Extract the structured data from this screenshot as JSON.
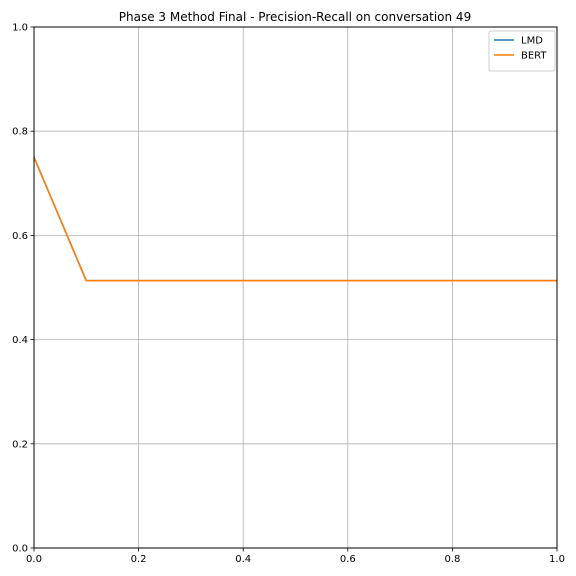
{
  "chart_data": {
    "type": "line",
    "title": "Phase 3 Method Final - Precision-Recall on conversation 49",
    "xlabel": "",
    "ylabel": "",
    "xlim": [
      0,
      1
    ],
    "ylim": [
      0,
      1
    ],
    "grid": true,
    "legend_position": "top-right",
    "x_ticks": [
      "0.0",
      "0.2",
      "0.4",
      "0.6",
      "0.8",
      "1.0"
    ],
    "y_ticks": [
      "0.0",
      "0.2",
      "0.4",
      "0.6",
      "0.8",
      "1.0"
    ],
    "series": [
      {
        "name": "LMD",
        "color": "#1f77b4",
        "points": [
          [
            0.0,
            0.75
          ],
          [
            0.1,
            0.513
          ],
          [
            1.0,
            0.513
          ]
        ]
      },
      {
        "name": "BERT",
        "color": "#ff7f0e",
        "points": [
          [
            0.0,
            0.75
          ],
          [
            0.1,
            0.513
          ],
          [
            1.0,
            0.513
          ]
        ]
      }
    ]
  }
}
